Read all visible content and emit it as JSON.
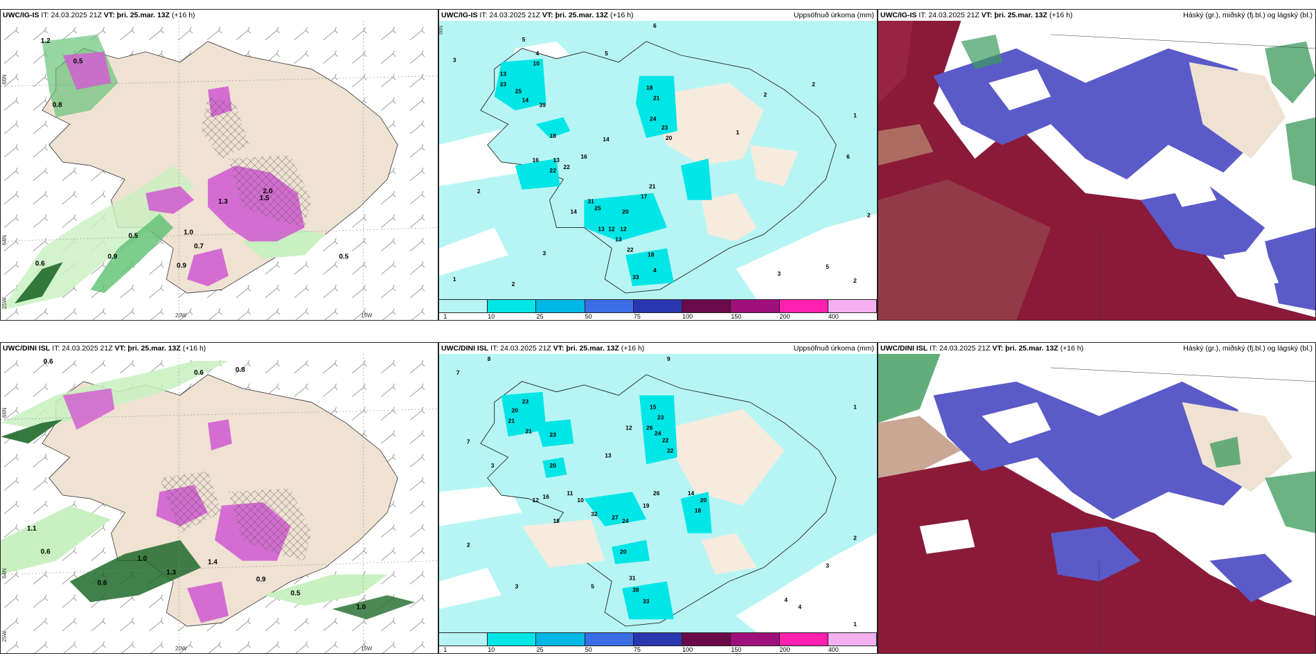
{
  "common": {
    "it_label": "IT:",
    "it_value": "24.03.2025 21Z",
    "vt_label": "VT:",
    "vt_value": "þri. 25.mar. 13Z",
    "lead": "(+16 h)"
  },
  "rows": [
    {
      "model": "UWC/IG-IS",
      "wind_title": "UWC/IG-IS",
      "precip_title": "UWC/IG-IS",
      "cloud_title": "UWC/IG-IS"
    },
    {
      "model": "UWC/DINI ISL",
      "wind_title": "UWC/DINI ISL",
      "precip_title": "UWC/DINI ISL",
      "cloud_title": "UWC/DINI ISL"
    }
  ],
  "precip_panel": {
    "right_title": "Uppsöfnuð úrkoma (mm)",
    "colorbar": {
      "labels": [
        "1",
        "10",
        "25",
        "50",
        "75",
        "100",
        "150",
        "200",
        "400"
      ],
      "colors": [
        "#b7f5f5",
        "#00e5e5",
        "#00b7e6",
        "#3b6ee6",
        "#2a35b0",
        "#6a0a4a",
        "#a0107a",
        "#ff20b0",
        "#f4b0f0"
      ]
    }
  },
  "cloud_panel": {
    "right_title": "Háský (gr.), miðský (fj.bl.) og lágský (bl.)"
  },
  "wind_panel": {
    "lon_labels": [
      "20W",
      "15W"
    ],
    "lat_labels": [
      "66N",
      "64N",
      "25W"
    ]
  },
  "precip_values_top": [
    "3",
    "5",
    "4",
    "6",
    "5",
    "10",
    "13",
    "23",
    "25",
    "14",
    "39",
    "18",
    "16",
    "13",
    "22",
    "22",
    "16",
    "31",
    "25",
    "20",
    "14",
    "13",
    "12",
    "12",
    "13",
    "22",
    "18",
    "33",
    "4",
    "21",
    "17",
    "18",
    "21",
    "24",
    "23",
    "20",
    "14",
    "1",
    "2",
    "2",
    "1",
    "6",
    "2",
    "5",
    "3",
    "2",
    "3",
    "2",
    "1",
    "2"
  ],
  "precip_values_bottom": [
    "8",
    "7",
    "9",
    "3",
    "20",
    "21",
    "23",
    "21",
    "23",
    "20",
    "18",
    "32",
    "27",
    "24",
    "20",
    "31",
    "38",
    "33",
    "15",
    "23",
    "26",
    "24",
    "22",
    "22",
    "26",
    "19",
    "14",
    "20",
    "18",
    "13",
    "12",
    "11",
    "10",
    "16",
    "12",
    "7",
    "5",
    "2",
    "3",
    "4",
    "1",
    "3",
    "2",
    "4",
    "1"
  ],
  "wind_values_top": [
    "1.2",
    "0.5",
    "0.8",
    "0.9",
    "1.3",
    "1.5",
    "2.0",
    "1.0",
    "0.5",
    "0.6",
    "0.9",
    "0.7",
    "0.5"
  ],
  "wind_values_bottom": [
    "0.6",
    "0.6",
    "0.8",
    "1.1",
    "0.6",
    "1.0",
    "0.6",
    "1.3",
    "0.9",
    "1.4",
    "0.5",
    "1.0"
  ],
  "colors": {
    "land": "#efe2d3",
    "sea_precip": "#b7f5f5",
    "wind_green_light": "#c8f0c0",
    "wind_green": "#5cc070",
    "wind_green_dark": "#1f6a2a",
    "magenta": "#d060d0",
    "cloud_high": "#8a1a38",
    "cloud_mid": "#5a5ac8",
    "cloud_low": "#3a9a5a",
    "cloud_brown": "#b88870"
  }
}
